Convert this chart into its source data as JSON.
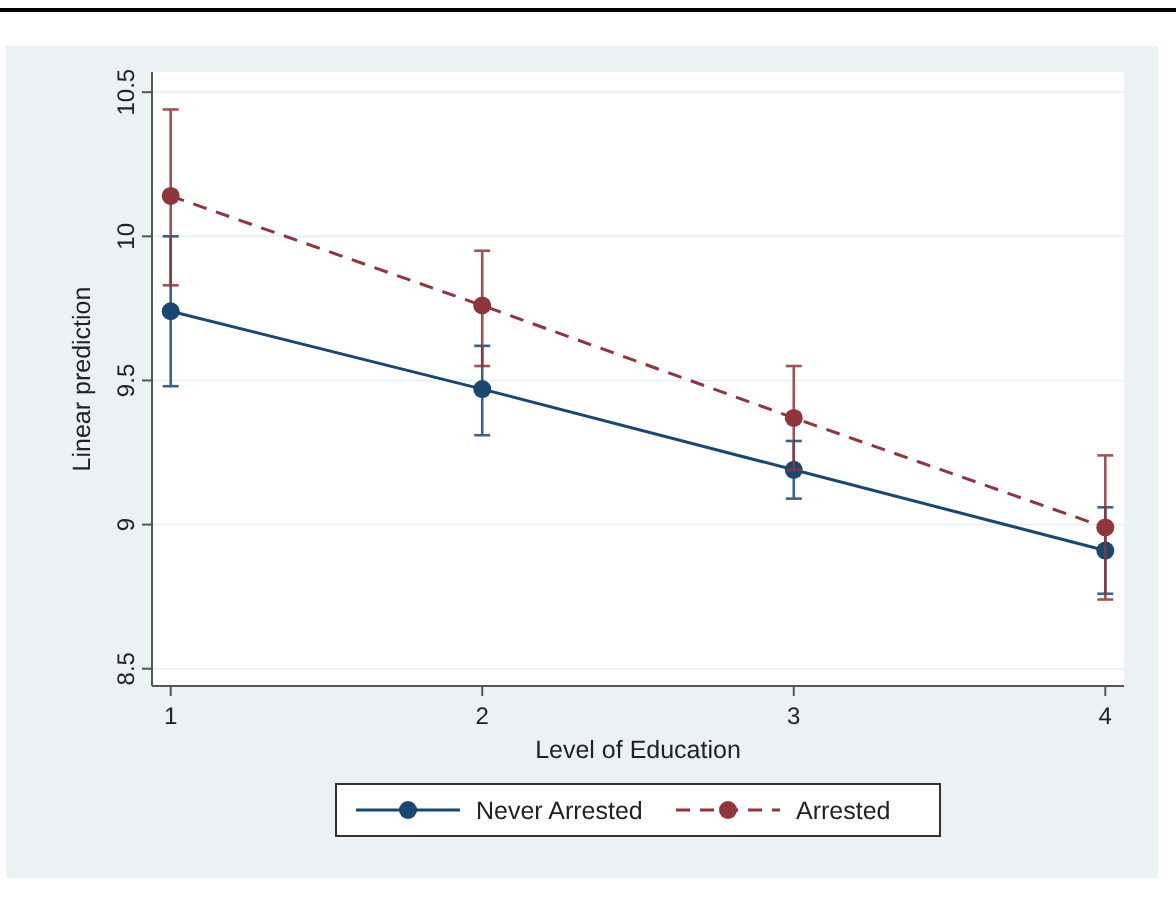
{
  "chart_data": {
    "type": "line",
    "xlabel": "Level of Education",
    "ylabel": "Linear prediction",
    "x": [
      1,
      2,
      3,
      4
    ],
    "xlim": [
      0.94,
      4.06
    ],
    "xticks": [
      1,
      2,
      3,
      4
    ],
    "ylim": [
      8.44,
      10.57
    ],
    "yticks": [
      {
        "value": 8.5,
        "label": "8.5"
      },
      {
        "value": 9,
        "label": "9"
      },
      {
        "value": 9.5,
        "label": "9.5"
      },
      {
        "value": 10,
        "label": "10"
      },
      {
        "value": 10.5,
        "label": "10.5"
      }
    ],
    "grid": "y",
    "legend": "bottom",
    "marker": "circle",
    "series": [
      {
        "name": "Never Arrested",
        "color": "#1a476f",
        "line_style": "solid",
        "values": [
          9.74,
          9.47,
          9.19,
          8.91
        ],
        "errors": [
          [
            9.48,
            10.0
          ],
          [
            9.31,
            9.62
          ],
          [
            9.09,
            9.29
          ],
          [
            8.76,
            9.06
          ]
        ]
      },
      {
        "name": "Arrested",
        "color": "#90353b",
        "line_style": "dashed",
        "values": [
          10.14,
          9.76,
          9.37,
          8.99
        ],
        "errors": [
          [
            9.83,
            10.44
          ],
          [
            9.55,
            9.95
          ],
          [
            9.19,
            9.55
          ],
          [
            8.74,
            9.24
          ]
        ]
      }
    ]
  }
}
